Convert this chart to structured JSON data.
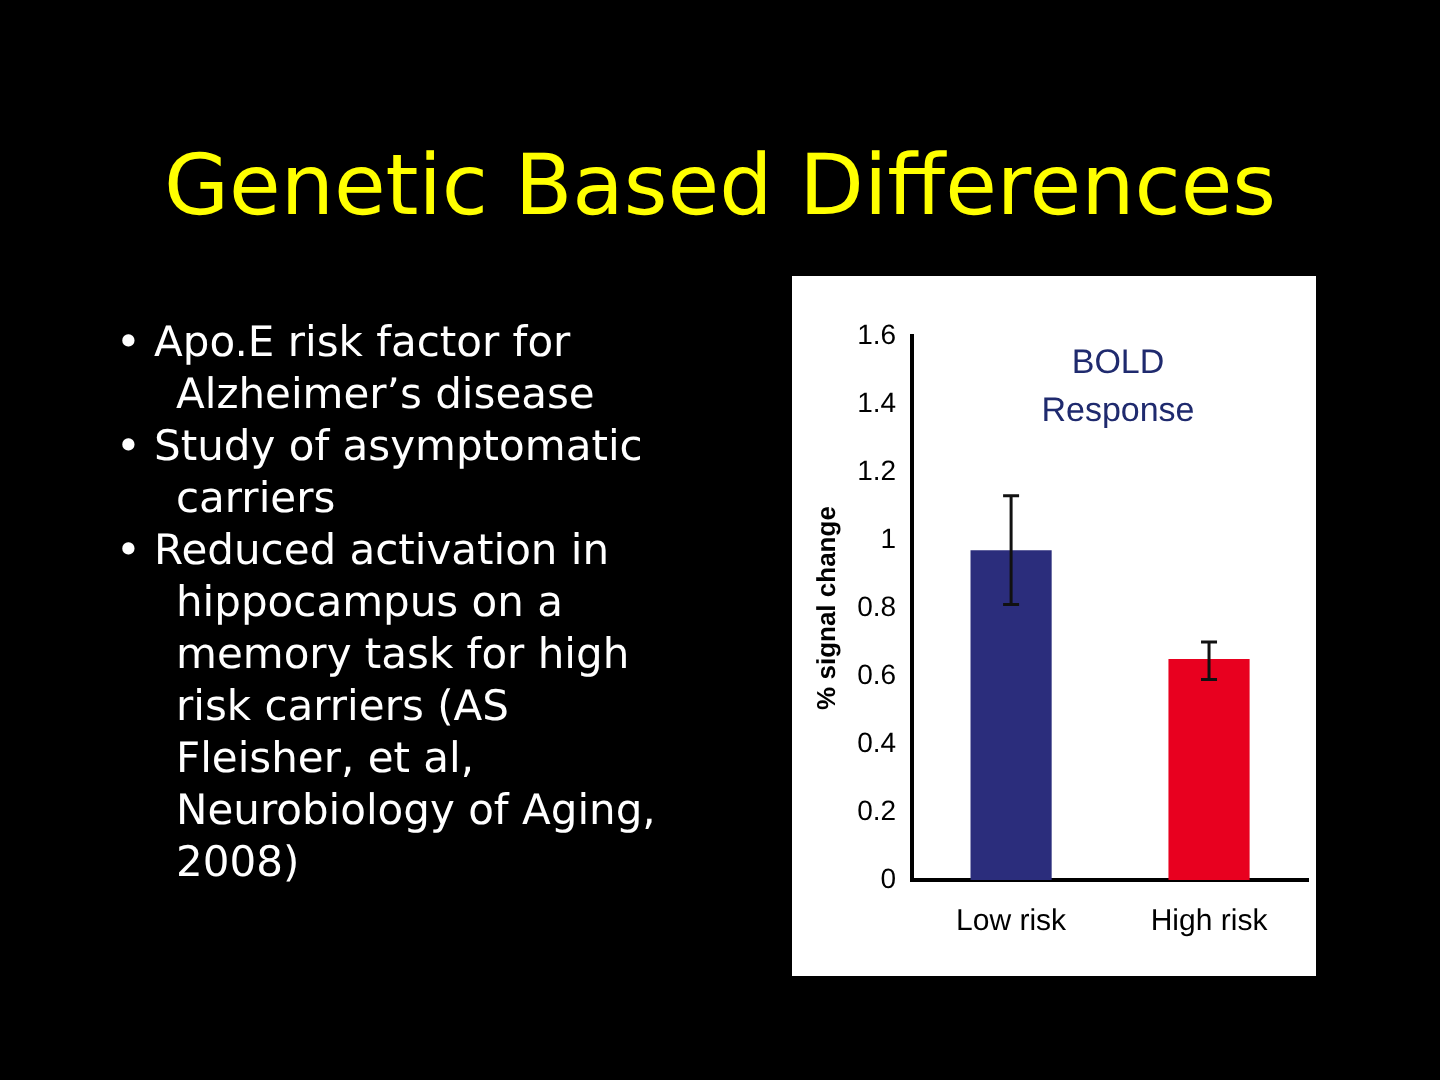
{
  "chart_data": {
    "type": "bar",
    "title": "Genetic Based Differences",
    "subtitle": "BOLD Response",
    "ylabel": "% signal change",
    "annotations": [
      "• Apo.E risk factor for Alzheimer’s disease",
      "• Study of asymptomatic carriers",
      "• Reduced activation in hippocampus on a memory task for high risk carriers (AS Fleisher, et al, Neurobiology of Aging, 2008)"
    ],
    "categories": [
      "Low risk",
      "High risk"
    ],
    "values": [
      0.97,
      0.65
    ],
    "colors": [
      "#2b2d7c",
      "#e8001f"
    ],
    "errors": [
      [
        0.81,
        1.13
      ],
      [
        0.59,
        0.7
      ]
    ],
    "ylim": [
      0,
      1.6
    ],
    "yticks": [
      0,
      0.2,
      0.4,
      0.6,
      0.8,
      1,
      1.2,
      1.4,
      1.6
    ],
    "grid": false,
    "legend": false
  }
}
